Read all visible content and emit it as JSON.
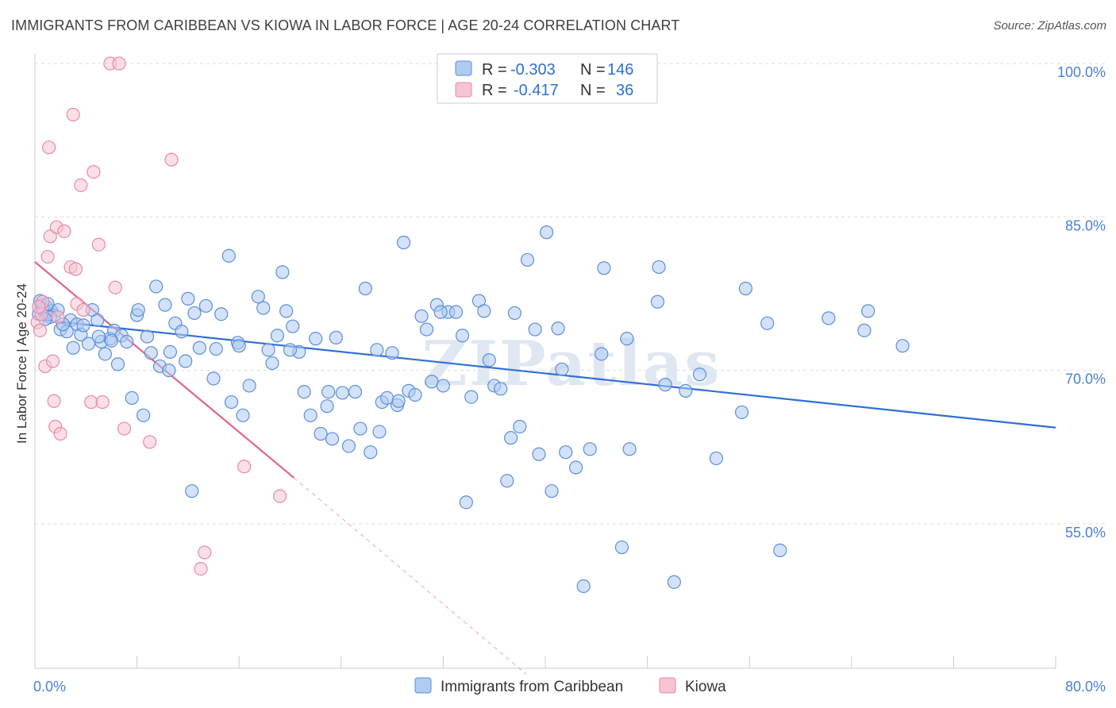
{
  "title": "IMMIGRANTS FROM CARIBBEAN VS KIOWA IN LABOR FORCE | AGE 20-24 CORRELATION CHART",
  "source": "Source: ZipAtlas.com",
  "watermark": "ZIPatlas",
  "colors": {
    "blue_fill": "#aecbf2",
    "blue_stroke": "#5b8fd8",
    "blue_line": "#2f6fd6",
    "pink_fill": "#f7c4d3",
    "pink_stroke": "#e88aa8",
    "pink_line": "#e0648e",
    "grid": "#dddddd",
    "tick_label": "#4a7fd4"
  },
  "legend": {
    "rows": [
      {
        "r_label": "R =",
        "r_value": "-0.303",
        "n_label": "N =",
        "n_value": "146"
      },
      {
        "r_label": "R =",
        "r_value": "-0.417",
        "n_label": "N =",
        "n_value": "36"
      }
    ]
  },
  "chart_data": {
    "type": "scatter",
    "title": "IMMIGRANTS FROM CARIBBEAN VS KIOWA IN LABOR FORCE | AGE 20-24 CORRELATION CHART",
    "xlabel": "",
    "ylabel": "In Labor Force | Age 20-24",
    "xlim": [
      0,
      80
    ],
    "ylim": [
      40,
      102
    ],
    "x_tick_labels": [
      "0.0%",
      "80.0%"
    ],
    "y_ticks": [
      55,
      70,
      85,
      100
    ],
    "y_tick_labels": [
      "55.0%",
      "70.0%",
      "85.0%",
      "100.0%"
    ],
    "grid": true,
    "legend_position": "top-center",
    "series": [
      {
        "name": "Immigrants from Caribbean",
        "r": -0.303,
        "n": 146,
        "trend": {
          "x": [
            0,
            80
          ],
          "y": [
            75.0,
            64.4
          ]
        },
        "points": [
          [
            0.3,
            75.5
          ],
          [
            0.5,
            76.4
          ],
          [
            0.7,
            75.9
          ],
          [
            0.9,
            76.2
          ],
          [
            1.1,
            75.6
          ],
          [
            1.3,
            75.8
          ],
          [
            1.5,
            75.4
          ],
          [
            1.8,
            75.9
          ],
          [
            0.4,
            76.8
          ],
          [
            0.6,
            76.0
          ],
          [
            1.0,
            76.5
          ],
          [
            1.2,
            75.2
          ],
          [
            2.0,
            74.0
          ],
          [
            2.5,
            73.8
          ],
          [
            2.8,
            74.9
          ],
          [
            3.0,
            72.2
          ],
          [
            3.3,
            74.5
          ],
          [
            3.6,
            73.5
          ],
          [
            3.8,
            74.4
          ],
          [
            4.2,
            72.6
          ],
          [
            4.5,
            75.9
          ],
          [
            4.9,
            74.9
          ],
          [
            5.2,
            72.8
          ],
          [
            5.5,
            71.6
          ],
          [
            5.9,
            73.1
          ],
          [
            6.2,
            73.9
          ],
          [
            6.5,
            70.6
          ],
          [
            6.8,
            73.4
          ],
          [
            7.2,
            72.8
          ],
          [
            7.6,
            67.3
          ],
          [
            8.0,
            75.4
          ],
          [
            8.5,
            65.6
          ],
          [
            8.8,
            73.3
          ],
          [
            9.1,
            71.7
          ],
          [
            9.5,
            78.2
          ],
          [
            9.8,
            70.4
          ],
          [
            10.2,
            76.4
          ],
          [
            10.6,
            71.8
          ],
          [
            11.0,
            74.6
          ],
          [
            11.5,
            73.8
          ],
          [
            11.8,
            70.9
          ],
          [
            12.3,
            58.2
          ],
          [
            12.5,
            75.6
          ],
          [
            12.9,
            72.2
          ],
          [
            13.4,
            76.3
          ],
          [
            14.0,
            69.2
          ],
          [
            14.2,
            72.1
          ],
          [
            14.6,
            75.5
          ],
          [
            15.2,
            81.2
          ],
          [
            15.4,
            66.9
          ],
          [
            15.9,
            72.7
          ],
          [
            16.3,
            65.6
          ],
          [
            16.8,
            68.5
          ],
          [
            17.5,
            77.2
          ],
          [
            17.9,
            76.1
          ],
          [
            18.3,
            72.0
          ],
          [
            18.6,
            70.7
          ],
          [
            19.0,
            73.4
          ],
          [
            19.4,
            79.6
          ],
          [
            19.7,
            75.8
          ],
          [
            20.2,
            74.3
          ],
          [
            20.7,
            71.8
          ],
          [
            21.1,
            67.9
          ],
          [
            21.6,
            65.6
          ],
          [
            22.0,
            73.1
          ],
          [
            22.4,
            63.8
          ],
          [
            22.9,
            66.5
          ],
          [
            23.3,
            63.3
          ],
          [
            23.6,
            73.2
          ],
          [
            24.1,
            67.8
          ],
          [
            24.6,
            62.6
          ],
          [
            25.1,
            67.9
          ],
          [
            25.5,
            64.3
          ],
          [
            25.9,
            78.0
          ],
          [
            26.3,
            62.0
          ],
          [
            26.8,
            72.0
          ],
          [
            27.2,
            66.9
          ],
          [
            27.6,
            67.3
          ],
          [
            28.0,
            71.7
          ],
          [
            28.4,
            66.6
          ],
          [
            28.9,
            82.5
          ],
          [
            29.3,
            68.0
          ],
          [
            29.8,
            67.6
          ],
          [
            30.3,
            75.3
          ],
          [
            30.7,
            74.0
          ],
          [
            31.1,
            68.9
          ],
          [
            31.5,
            76.4
          ],
          [
            32.0,
            68.5
          ],
          [
            32.4,
            75.7
          ],
          [
            33.0,
            75.7
          ],
          [
            33.5,
            73.4
          ],
          [
            33.8,
            57.1
          ],
          [
            34.2,
            67.4
          ],
          [
            34.8,
            76.8
          ],
          [
            35.2,
            75.8
          ],
          [
            35.6,
            71.0
          ],
          [
            36.0,
            68.5
          ],
          [
            36.5,
            68.2
          ],
          [
            37.0,
            59.2
          ],
          [
            37.3,
            63.4
          ],
          [
            37.6,
            75.6
          ],
          [
            38.0,
            64.5
          ],
          [
            38.6,
            80.8
          ],
          [
            39.2,
            74.0
          ],
          [
            39.5,
            61.8
          ],
          [
            40.1,
            83.5
          ],
          [
            40.5,
            58.2
          ],
          [
            41.0,
            74.1
          ],
          [
            41.3,
            70.1
          ],
          [
            41.6,
            62.0
          ],
          [
            42.4,
            60.5
          ],
          [
            43.5,
            62.3
          ],
          [
            44.4,
            71.6
          ],
          [
            44.6,
            80.0
          ],
          [
            46.0,
            52.7
          ],
          [
            46.4,
            73.1
          ],
          [
            46.6,
            62.3
          ],
          [
            48.8,
            76.7
          ],
          [
            48.9,
            80.1
          ],
          [
            49.4,
            68.6
          ],
          [
            50.1,
            49.3
          ],
          [
            51.0,
            68.0
          ],
          [
            52.1,
            69.6
          ],
          [
            53.4,
            61.4
          ],
          [
            55.4,
            65.9
          ],
          [
            55.7,
            78.0
          ],
          [
            57.4,
            74.6
          ],
          [
            58.4,
            52.4
          ],
          [
            62.2,
            75.1
          ],
          [
            65.0,
            73.9
          ],
          [
            65.3,
            75.8
          ],
          [
            68.0,
            72.4
          ],
          [
            8.1,
            75.9
          ],
          [
            5.0,
            73.3
          ],
          [
            10.5,
            70.0
          ],
          [
            20.0,
            72.0
          ],
          [
            27.0,
            64.0
          ],
          [
            43.0,
            48.9
          ],
          [
            28.5,
            67.0
          ],
          [
            16.0,
            72.4
          ],
          [
            23.0,
            67.9
          ],
          [
            31.8,
            75.7
          ],
          [
            12.0,
            77.0
          ],
          [
            6.0,
            72.9
          ],
          [
            2.2,
            74.5
          ],
          [
            0.8,
            75.0
          ]
        ]
      },
      {
        "name": "Kiowa",
        "r": -0.417,
        "n": 36,
        "trend": {
          "x": [
            0,
            20.3
          ],
          "y": [
            80.6,
            59.5
          ],
          "dashed_to": {
            "x": 38.5,
            "y": 40.3
          }
        },
        "points": [
          [
            0.2,
            74.7
          ],
          [
            0.4,
            73.9
          ],
          [
            0.5,
            75.5
          ],
          [
            0.6,
            76.7
          ],
          [
            0.8,
            70.4
          ],
          [
            1.0,
            81.1
          ],
          [
            1.1,
            91.8
          ],
          [
            1.2,
            83.1
          ],
          [
            1.4,
            70.9
          ],
          [
            1.5,
            67.0
          ],
          [
            1.6,
            64.5
          ],
          [
            1.7,
            84.0
          ],
          [
            1.8,
            75.2
          ],
          [
            2.0,
            63.8
          ],
          [
            2.3,
            83.6
          ],
          [
            2.8,
            80.1
          ],
          [
            3.0,
            95.0
          ],
          [
            3.2,
            79.9
          ],
          [
            3.3,
            76.5
          ],
          [
            3.6,
            88.1
          ],
          [
            3.8,
            75.9
          ],
          [
            4.4,
            66.9
          ],
          [
            4.6,
            89.4
          ],
          [
            5.0,
            82.3
          ],
          [
            5.3,
            66.9
          ],
          [
            5.9,
            100.0
          ],
          [
            6.3,
            78.1
          ],
          [
            6.6,
            100.0
          ],
          [
            7.0,
            64.3
          ],
          [
            9.0,
            63.0
          ],
          [
            10.7,
            90.6
          ],
          [
            13.3,
            52.2
          ],
          [
            16.4,
            60.6
          ],
          [
            19.2,
            57.7
          ],
          [
            13.0,
            50.6
          ],
          [
            0.3,
            76.2
          ]
        ]
      }
    ]
  }
}
